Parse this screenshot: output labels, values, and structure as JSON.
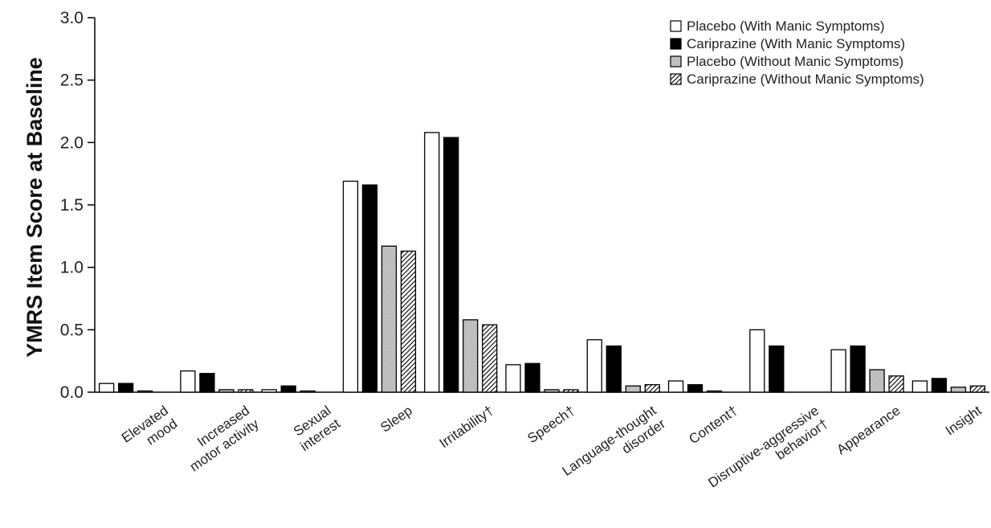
{
  "chart_data": {
    "type": "bar",
    "title": "",
    "xlabel": "",
    "ylabel": "YMRS Item Score at Baseline",
    "ylim": [
      0,
      3.0
    ],
    "yticks": [
      "0.0",
      "0.5",
      "1.0",
      "1.5",
      "2.0",
      "2.5",
      "3.0"
    ],
    "legend_position": "top-right",
    "grid": false,
    "categories": [
      [
        "Elevated",
        "mood"
      ],
      [
        "Increased",
        "motor activity"
      ],
      [
        "Sexual",
        "interest"
      ],
      [
        "Sleep"
      ],
      [
        "Irritability†"
      ],
      [
        "Speech†"
      ],
      [
        "Language-thought",
        "disorder"
      ],
      [
        "Content†"
      ],
      [
        "Disruptive-aggressive",
        "behavior†"
      ],
      [
        "Appearance"
      ],
      [
        "Insight"
      ]
    ],
    "series": [
      {
        "name": "Placebo (With Manic Symptoms)",
        "fill": "white",
        "values": [
          0.07,
          0.17,
          0.02,
          1.69,
          2.08,
          0.22,
          0.42,
          0.09,
          0.5,
          0.34,
          0.09
        ]
      },
      {
        "name": "Cariprazine (With Manic Symptoms)",
        "fill": "black",
        "values": [
          0.07,
          0.15,
          0.05,
          1.66,
          2.04,
          0.23,
          0.37,
          0.06,
          0.37,
          0.37,
          0.11
        ]
      },
      {
        "name": "Placebo (Without Manic Symptoms)",
        "fill": "gray",
        "values": [
          0.01,
          0.02,
          0.01,
          1.17,
          0.58,
          0.02,
          0.05,
          0.01,
          0.0,
          0.18,
          0.04
        ]
      },
      {
        "name": "Cariprazine (Without Manic Symptoms)",
        "fill": "hatch",
        "values": [
          0.0,
          0.02,
          0.0,
          1.13,
          0.54,
          0.02,
          0.06,
          0.0,
          0.0,
          0.13,
          0.05
        ]
      }
    ],
    "colors": {
      "bar_stroke": "#000000",
      "gray_fill": "#b8b8b8",
      "hatch_line": "#000000"
    }
  }
}
